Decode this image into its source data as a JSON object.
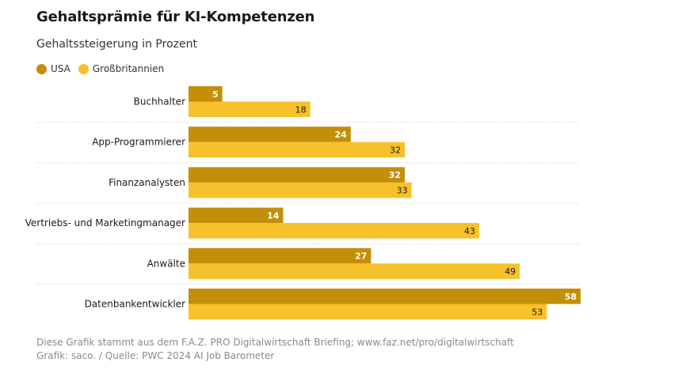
{
  "colors": {
    "usa": "#c38f08",
    "gb": "#f6c12a",
    "grid": "#d0d0d0"
  },
  "chart_data": {
    "type": "bar",
    "orientation": "horizontal",
    "title": "Gehaltsprämie für KI-Kompetenzen",
    "subtitle": "Gehaltssteigerung in Prozent",
    "categories": [
      "Buchhalter",
      "App-Programmierer",
      "Finanzanalysten",
      "Vertriebs- und Marketingmanager",
      "Anwälte",
      "Datenbankentwickler"
    ],
    "series": [
      {
        "name": "USA",
        "values": [
          5,
          24,
          32,
          14,
          27,
          58
        ]
      },
      {
        "name": "Großbritannien",
        "values": [
          18,
          32,
          33,
          43,
          49,
          53
        ]
      }
    ],
    "xlim": [
      0,
      58
    ],
    "legend_position": "top-left"
  },
  "footer": {
    "line1": "Diese Grafik stammt aus dem F.A.Z. PRO Digitalwirtschaft Briefing; www.faz.net/pro/digitalwirtschaft",
    "line2": "Grafik: saco. / Quelle: PWC 2024 AI Job Barometer"
  }
}
